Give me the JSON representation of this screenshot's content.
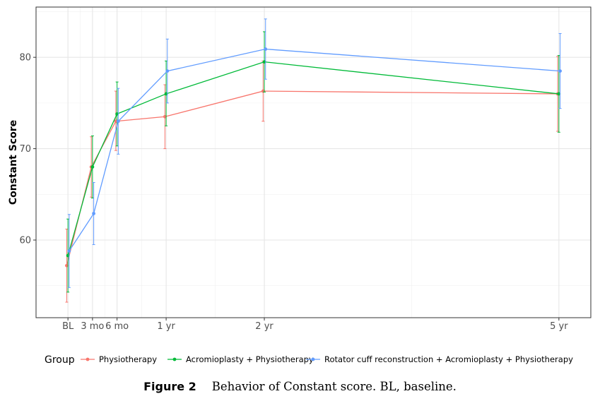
{
  "chart_data": {
    "type": "line",
    "xlabel": "",
    "ylabel": "Constant Score",
    "x": [
      0,
      3,
      6,
      12,
      24,
      60
    ],
    "xtick_values": [
      0,
      3,
      6,
      12,
      24,
      60
    ],
    "xtick_labels": [
      "BL",
      "3 mo",
      "6 mo",
      "1 yr",
      "2 yr",
      "5 yr"
    ],
    "xlim": [
      -3.9,
      63.9
    ],
    "ylim": [
      51.5,
      85.5
    ],
    "yticks": [
      60,
      70,
      80
    ],
    "grid": true,
    "error_bars": true,
    "legend_title": "Group",
    "legend_position": "bottom",
    "series": [
      {
        "name": "Physiotherapy",
        "color": "#F8766D",
        "offset": -0.27,
        "values": [
          57.2,
          68.0,
          73.0,
          73.5,
          76.3,
          76.0
        ],
        "lower": [
          53.2,
          64.7,
          69.8,
          70.0,
          73.0,
          71.9
        ],
        "upper": [
          61.2,
          71.3,
          76.3,
          77.0,
          79.6,
          80.1
        ]
      },
      {
        "name": "Acromioplasty + Physiotherapy",
        "color": "#00BA38",
        "offset": 0.0,
        "values": [
          58.3,
          68.0,
          73.8,
          76.0,
          79.5,
          76.0
        ],
        "lower": [
          54.3,
          64.6,
          70.3,
          72.5,
          76.2,
          71.8
        ],
        "upper": [
          62.3,
          71.4,
          77.3,
          79.6,
          82.8,
          80.2
        ]
      },
      {
        "name": "Rotator cuff reconstruction + Acromioplasty + Physiotherapy",
        "color": "#619CFF",
        "offset": 0.27,
        "values": [
          58.8,
          62.9,
          73.0,
          78.5,
          80.9,
          78.5
        ],
        "lower": [
          54.8,
          59.5,
          69.4,
          75.0,
          77.6,
          74.4
        ],
        "upper": [
          62.8,
          66.3,
          76.6,
          82.0,
          84.2,
          82.6
        ]
      }
    ]
  },
  "caption": {
    "label": "Figure 2",
    "text": "Behavior of Constant score. BL, baseline."
  }
}
